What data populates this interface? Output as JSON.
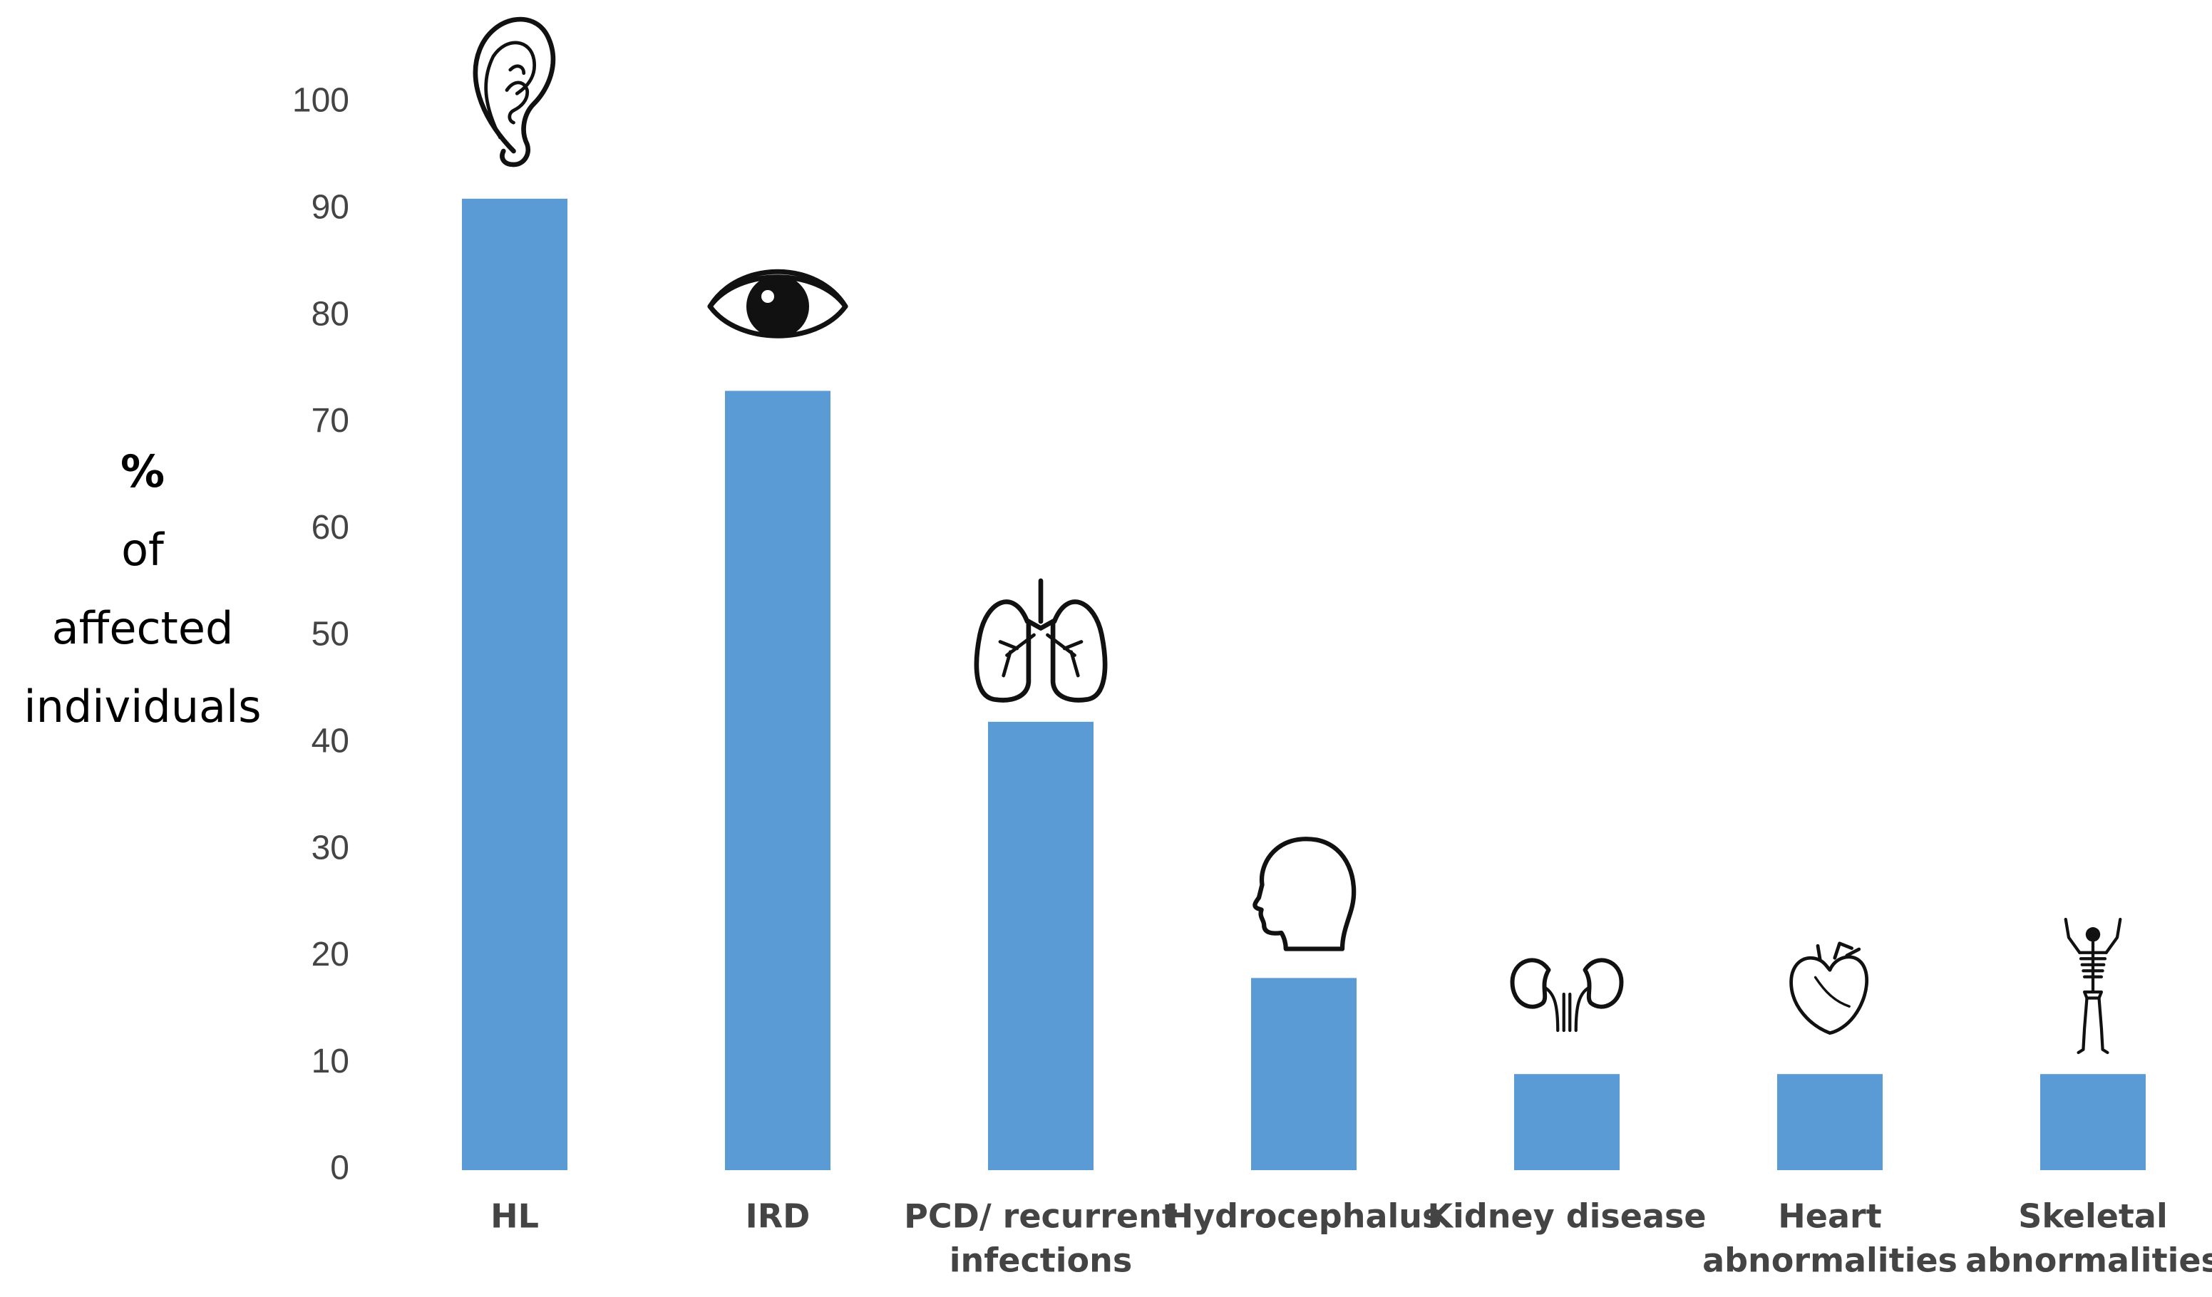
{
  "chart_data": {
    "type": "bar",
    "title": "",
    "xlabel": "",
    "ylabel_lines": [
      "%",
      "of",
      "affected",
      "individuals"
    ],
    "ylim": [
      0,
      100
    ],
    "yticks": [
      "0",
      "10",
      "20",
      "30",
      "40",
      "50",
      "60",
      "70",
      "80",
      "90",
      "100"
    ],
    "grid": false,
    "bar_color": "#5b9bd5",
    "categories": [
      {
        "lines": [
          "HL"
        ],
        "icon": "ear-icon"
      },
      {
        "lines": [
          "IRD"
        ],
        "icon": "eye-icon"
      },
      {
        "lines": [
          "PCD/ recurrent",
          "infections"
        ],
        "icon": "lungs-icon"
      },
      {
        "lines": [
          "Hydrocephalus"
        ],
        "icon": "head-icon"
      },
      {
        "lines": [
          "Kidney disease"
        ],
        "icon": "kidneys-icon"
      },
      {
        "lines": [
          "Heart",
          "abnormalities"
        ],
        "icon": "heart-icon"
      },
      {
        "lines": [
          "Skeletal",
          "abnormalities"
        ],
        "icon": "skeleton-icon"
      }
    ],
    "values": [
      91,
      73,
      42,
      18,
      9,
      9,
      9
    ]
  }
}
